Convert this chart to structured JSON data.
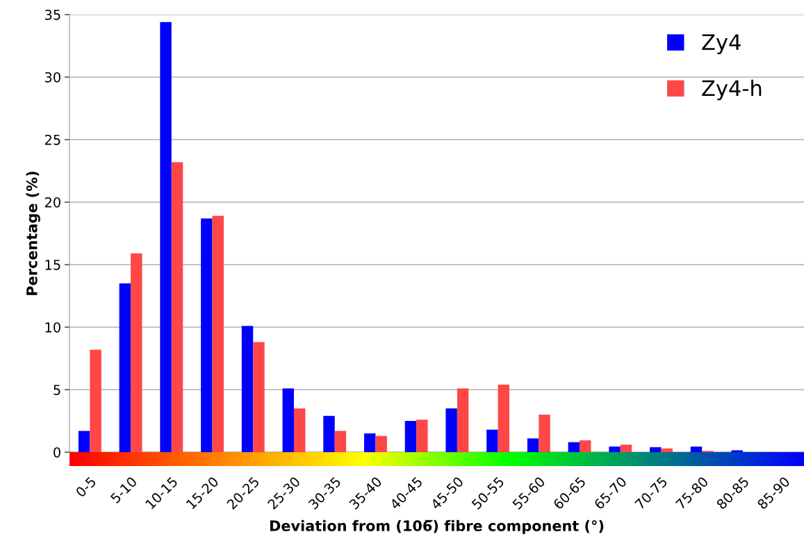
{
  "chart_data": {
    "type": "bar",
    "xlabel": "Deviation from (106̅) fibre component (°)",
    "ylabel": "Percentage (%)",
    "categories": [
      "0-5",
      "5-10",
      "10-15",
      "15-20",
      "20-25",
      "25-30",
      "30-35",
      "35-40",
      "40-45",
      "45-50",
      "50-55",
      "55-60",
      "60-65",
      "65-70",
      "70-75",
      "75-80",
      "80-85",
      "85-90"
    ],
    "series": [
      {
        "name": "Zy4",
        "color": "#0000ff",
        "values": [
          1.7,
          13.5,
          34.4,
          18.7,
          10.1,
          5.1,
          2.9,
          1.5,
          2.5,
          3.5,
          1.8,
          1.1,
          0.8,
          0.45,
          0.4,
          0.45,
          0.15,
          0
        ]
      },
      {
        "name": "Zy4-h",
        "color": "#ff4747",
        "values": [
          8.2,
          15.9,
          23.2,
          18.9,
          8.8,
          3.5,
          1.7,
          1.3,
          2.6,
          5.1,
          5.4,
          3.0,
          0.95,
          0.6,
          0.3,
          0.1,
          0,
          0
        ]
      }
    ],
    "ylim": [
      0,
      35
    ],
    "yticks": [
      0,
      5,
      10,
      15,
      20,
      25,
      30,
      35
    ],
    "grid": "y",
    "legend": "top right"
  }
}
